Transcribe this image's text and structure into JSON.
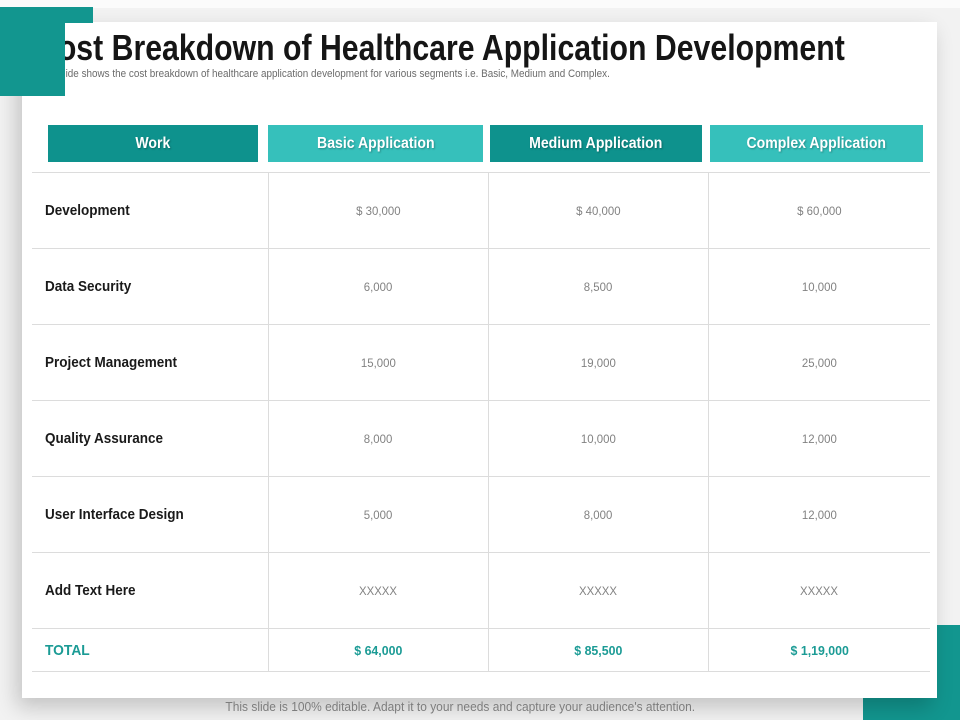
{
  "slide": {
    "title": "Cost Breakdown of Healthcare Application Development",
    "subtitle": "This slide shows the cost breakdown of healthcare application development for various segments i.e. Basic, Medium and Complex.",
    "footer": "This slide is 100% editable. Adapt it to your needs and capture your audience's attention."
  },
  "colors": {
    "teal_header_dark": "#0E928D",
    "teal_header_light": "#36C0BB",
    "corner_accent": "#12968F",
    "total_text": "#1B9B95",
    "value_text": "#828282",
    "label_text": "#1A1A1A",
    "grid_line": "#DCDCDC",
    "card_background": "#FFFFFF",
    "slide_background": "#F2F2F2"
  },
  "table": {
    "headers": [
      "Work",
      "Basic Application",
      "Medium Application",
      "Complex Application"
    ],
    "rows": [
      {
        "label": "Development",
        "basic": "$ 30,000",
        "medium": "$ 40,000",
        "complex": "$ 60,000"
      },
      {
        "label": "Data Security",
        "basic": "6,000",
        "medium": "8,500",
        "complex": "10,000"
      },
      {
        "label": "Project Management",
        "basic": "15,000",
        "medium": "19,000",
        "complex": "25,000"
      },
      {
        "label": "Quality Assurance",
        "basic": "8,000",
        "medium": "10,000",
        "complex": "12,000"
      },
      {
        "label": "User Interface Design",
        "basic": "5,000",
        "medium": "8,000",
        "complex": "12,000"
      },
      {
        "label": "Add Text Here",
        "basic": "XXXXX",
        "medium": "XXXXX",
        "complex": "XXXXX"
      }
    ],
    "total": {
      "label": "TOTAL",
      "basic": "$ 64,000",
      "medium": "$ 85,500",
      "complex": "$ 1,19,000"
    }
  }
}
